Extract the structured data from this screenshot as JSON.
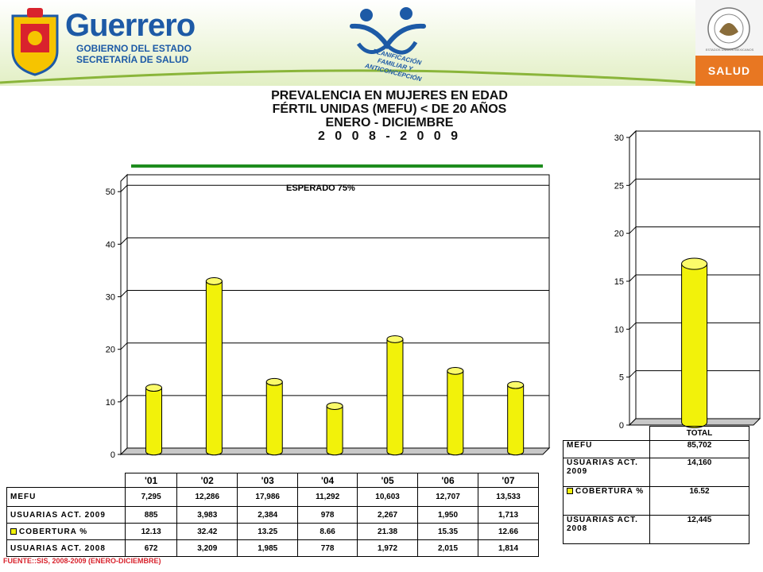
{
  "header": {
    "state_name": "Guerrero",
    "state_line1": "GOBIERNO DEL ESTADO",
    "state_line2": "SECRETARÍA DE SALUD",
    "program_name": "PLANIFICACIÓN FAMILIAR Y ANTICONCEPCIÓN",
    "ministry_badge": "SALUD",
    "seal_text": "ESTADOS UNIDOS MEXICANOS"
  },
  "title": {
    "line1": "PREVALENCIA EN MUJERES EN EDAD",
    "line2": "FÉRTIL UNIDAS (MEFU) < DE 20 AÑOS",
    "line3": "ENERO  -  DICIEMBRE",
    "line4": "2 0 0 8  -  2 0 0 9"
  },
  "colors": {
    "bar": "#f2f20a",
    "goal_line": "#1e8c1e",
    "source_text": "#d9232d",
    "badge": "#e87722"
  },
  "chart_data": [
    {
      "type": "bar",
      "categories": [
        "'01",
        "'02",
        "'03",
        "'04",
        "'05",
        "'06",
        "'07"
      ],
      "series": [
        {
          "name": "COBERTURA %",
          "values": [
            12.13,
            32.42,
            13.25,
            8.66,
            21.38,
            15.35,
            12.66
          ]
        }
      ],
      "annotation": "ESPERADO  75%",
      "yticks": [
        0,
        10,
        20,
        30,
        40,
        50
      ],
      "ylim": [
        0,
        52
      ],
      "grid": true
    },
    {
      "type": "bar",
      "categories": [
        "TOTAL"
      ],
      "series": [
        {
          "name": "COBERTURA %",
          "values": [
            16.52
          ]
        }
      ],
      "yticks": [
        0,
        5,
        10,
        15,
        20,
        25,
        30
      ],
      "ylim": [
        0,
        30
      ],
      "grid": true
    }
  ],
  "table_main": {
    "headers": [
      "'01",
      "'02",
      "'03",
      "'04",
      "'05",
      "'06",
      "'07"
    ],
    "rows": [
      {
        "label": "MEFU",
        "values": [
          "7,295",
          "12,286",
          "17,986",
          "11,292",
          "10,603",
          "12,707",
          "13,533"
        ]
      },
      {
        "label": "USUARIAS ACT. 2009",
        "values": [
          "885",
          "3,983",
          "2,384",
          "978",
          "2,267",
          "1,950",
          "1,713"
        ]
      },
      {
        "label": "COBERTURA %",
        "values": [
          "12.13",
          "32.42",
          "13.25",
          "8.66",
          "21.38",
          "15.35",
          "12.66"
        ]
      },
      {
        "label": "USUARIAS ACT. 2008",
        "values": [
          "672",
          "3,209",
          "1,985",
          "778",
          "1,972",
          "2,015",
          "1,814"
        ]
      }
    ]
  },
  "table_total": {
    "header": "TOTAL",
    "rows": [
      {
        "label": "MEFU",
        "value": "85,702"
      },
      {
        "label": "USUARIAS ACT. 2009",
        "value": "14,160"
      },
      {
        "label": "COBERTURA %",
        "value": "16.52"
      },
      {
        "label": "USUARIAS ACT. 2008",
        "value": "12,445"
      }
    ]
  },
  "source": "FUENTE::SIS, 2008-2009 (ENERO-DICIEMBRE)"
}
